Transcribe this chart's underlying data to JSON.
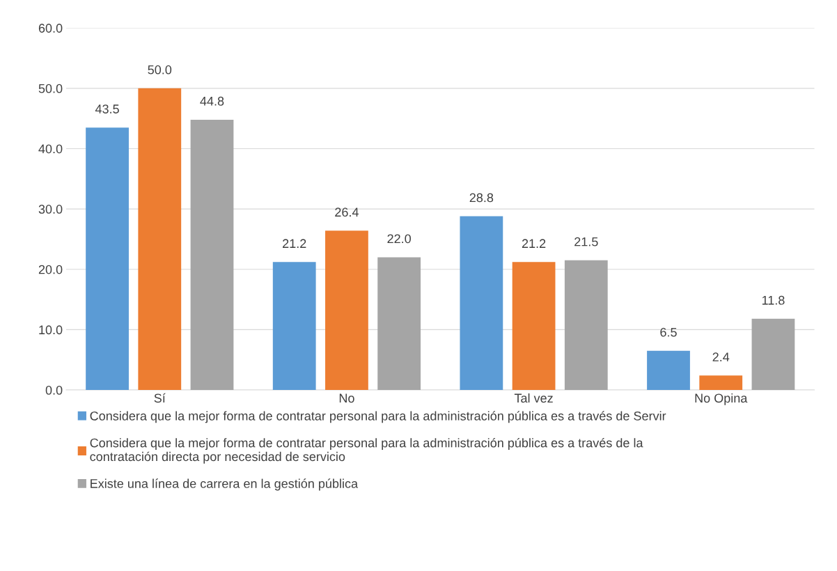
{
  "chart_data": {
    "type": "bar",
    "categories": [
      "Sí",
      "No",
      "Tal vez",
      "No Opina"
    ],
    "series": [
      {
        "name": "Considera que la mejor forma de contratar personal para la administración pública es a través de Servir",
        "color": "#5b9bd5",
        "values": [
          43.5,
          21.2,
          28.8,
          6.5
        ],
        "value_labels": [
          "43.5",
          "21.2",
          "28.8",
          "6.5"
        ]
      },
      {
        "name": "Considera que la mejor forma de contratar personal para la administración pública es a través de la\ncontratación directa por necesidad de servicio",
        "color": "#ed7d31",
        "values": [
          50.0,
          26.4,
          21.2,
          2.4
        ],
        "value_labels": [
          "50.0",
          "26.4",
          "21.2",
          "2.4"
        ]
      },
      {
        "name": "Existe una línea de carrera en la gestión pública",
        "color": "#a5a5a5",
        "values": [
          44.8,
          22.0,
          21.5,
          11.8
        ],
        "value_labels": [
          "44.8",
          "22.0",
          "21.5",
          "11.8"
        ]
      }
    ],
    "ylim": [
      0,
      60
    ],
    "yticks": [
      {
        "value": 0,
        "label": "0.0"
      },
      {
        "value": 10,
        "label": "10.0"
      },
      {
        "value": 20,
        "label": "20.0"
      },
      {
        "value": 30,
        "label": "30.0"
      },
      {
        "value": 40,
        "label": "40.0"
      },
      {
        "value": 50,
        "label": "50.0"
      },
      {
        "value": 60,
        "label": "60.0"
      }
    ],
    "grid": "y",
    "legend": "bottom"
  }
}
